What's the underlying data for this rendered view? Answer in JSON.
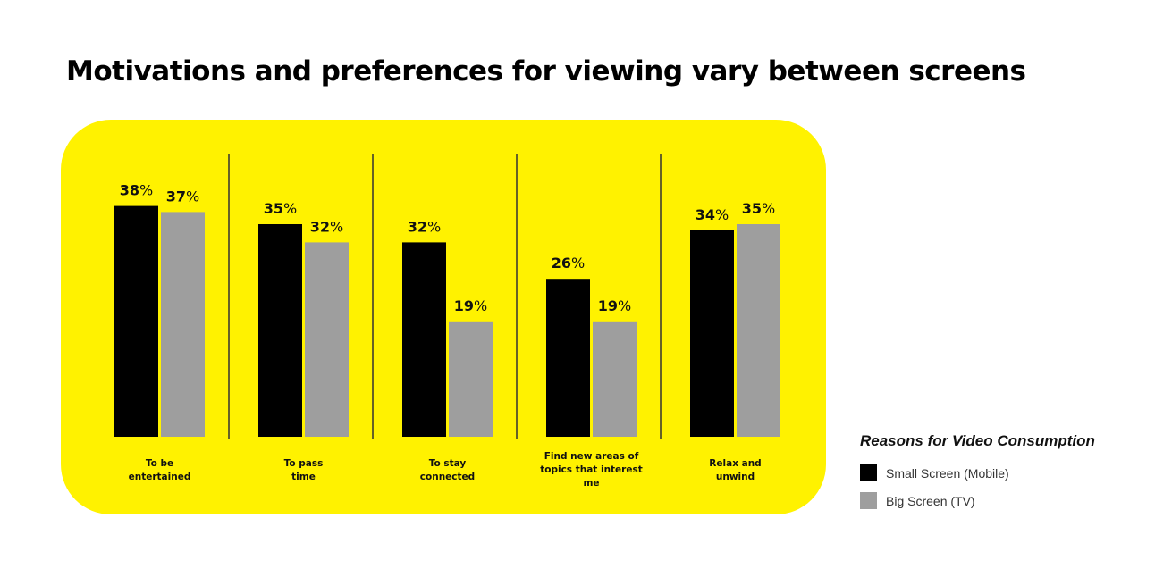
{
  "page": {
    "title": "Motivations and preferences for viewing vary between screens",
    "panel_color": "#FFF200"
  },
  "chart_data": {
    "type": "bar",
    "categories": [
      "To be entertained",
      "To pass time",
      "To stay connected",
      "Find new areas of topics that interest me",
      "Relax and unwind"
    ],
    "category_lines": [
      [
        "To be",
        "entertained"
      ],
      [
        "To pass",
        "time"
      ],
      [
        "To stay",
        "connected"
      ],
      [
        "Find new areas of",
        "topics that interest",
        "me"
      ],
      [
        "Relax and",
        "unwind"
      ]
    ],
    "series": [
      {
        "name": "Small Screen (Mobile)",
        "values": [
          38,
          35,
          32,
          26,
          34
        ],
        "color": "#000000"
      },
      {
        "name": "Big Screen (TV)",
        "values": [
          37,
          32,
          19,
          19,
          35
        ],
        "color": "#9E9E9E"
      }
    ],
    "value_suffix": "%",
    "ylim": [
      0,
      50
    ],
    "grid": false,
    "legend_title": "Reasons for Video Consumption",
    "legend_position": "bottom-right"
  }
}
